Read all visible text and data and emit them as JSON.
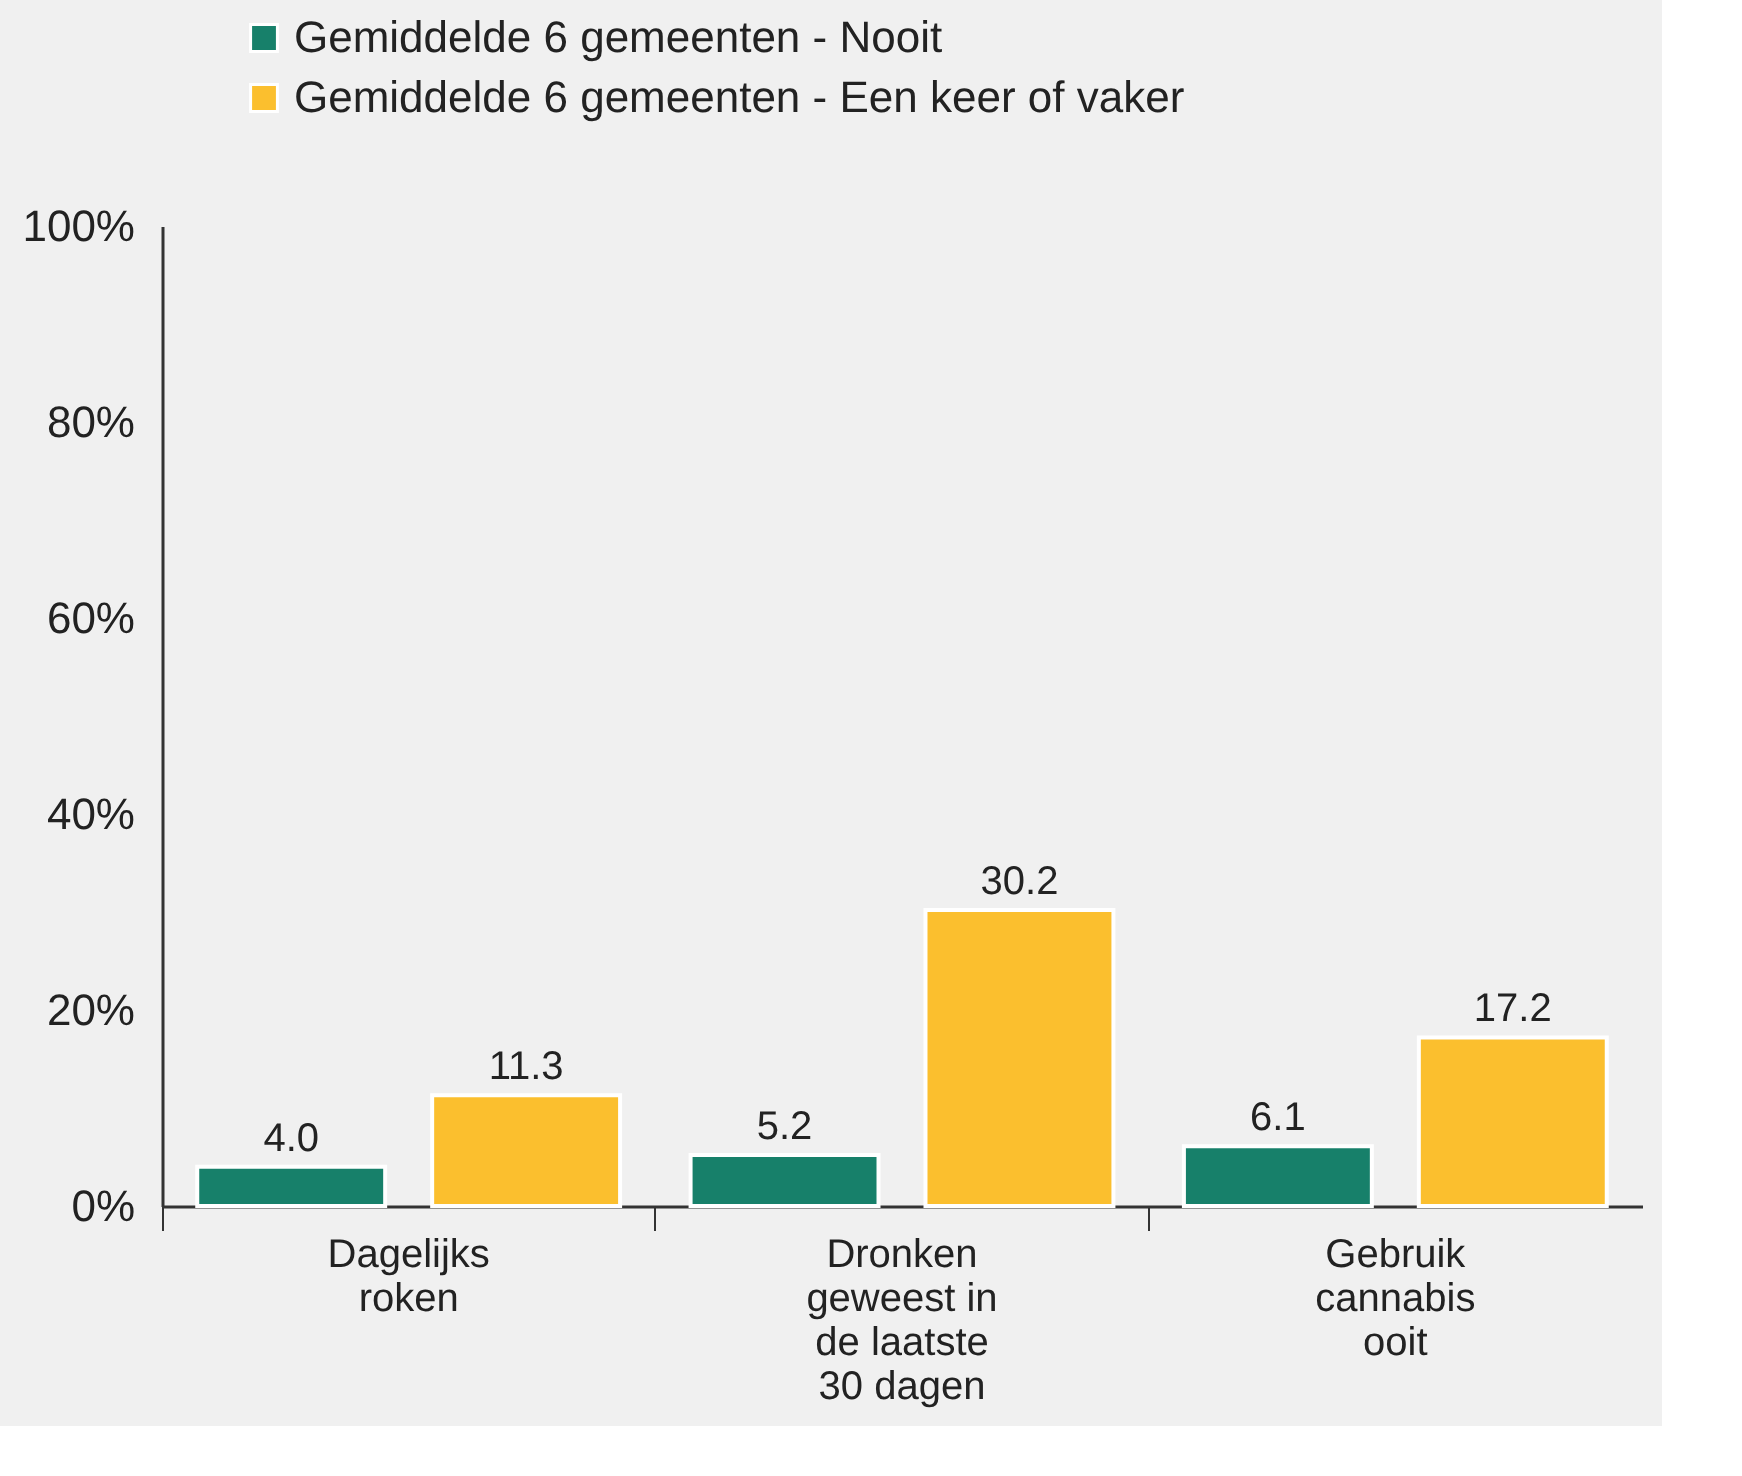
{
  "chart_data": {
    "type": "bar",
    "categories": [
      "Dagelijks\nroken",
      "Dronken\ngeweest in\nde laatste\n30 dagen",
      "Gebruik\ncannabis\nooit"
    ],
    "series": [
      {
        "name": "Gemiddelde 6 gemeenten - Nooit",
        "color": "#17806a",
        "values": [
          4.0,
          5.2,
          6.1
        ],
        "value_labels": [
          "4.0",
          "5.2",
          "6.1"
        ]
      },
      {
        "name": "Gemiddelde 6 gemeenten - Een keer of vaker",
        "color": "#fbbf2e",
        "values": [
          11.3,
          30.2,
          17.2
        ],
        "value_labels": [
          "11.3",
          "30.2",
          "17.2"
        ]
      }
    ],
    "ylim": [
      0,
      100
    ],
    "yticks": [
      {
        "value": 0,
        "label": "0%"
      },
      {
        "value": 20,
        "label": "20%"
      },
      {
        "value": 40,
        "label": "40%"
      },
      {
        "value": 60,
        "label": "60%"
      },
      {
        "value": 80,
        "label": "80%"
      },
      {
        "value": 100,
        "label": "100%"
      }
    ],
    "grid": false,
    "legend": "top left"
  }
}
